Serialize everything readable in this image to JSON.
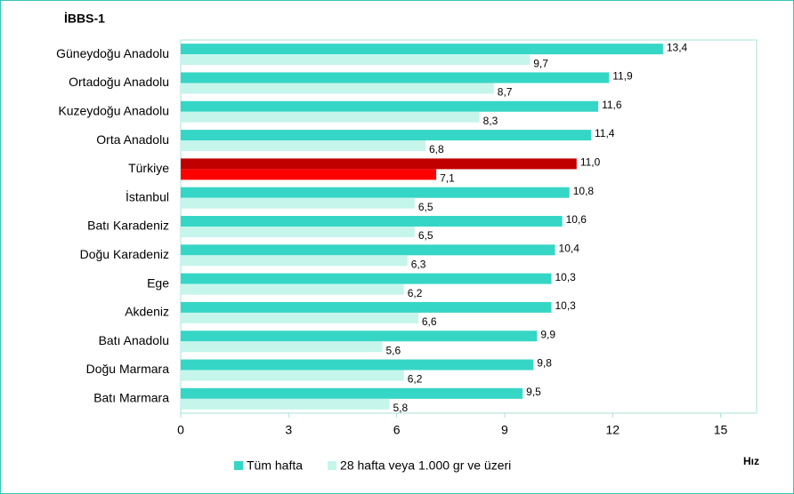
{
  "chart_data": {
    "type": "bar",
    "orientation": "horizontal",
    "title": "İBBS-1",
    "x_label": "Hız",
    "categories": [
      "Güneydoğu Anadolu",
      "Ortadoğu Anadolu",
      "Kuzeydoğu Anadolu",
      "Orta Anadolu",
      "Türkiye",
      "İstanbul",
      "Batı Karadeniz",
      "Doğu Karadeniz",
      "Ege",
      "Akdeniz",
      "Batı Anadolu",
      "Doğu Marmara",
      "Batı Marmara"
    ],
    "series": [
      {
        "name": "Tüm hafta",
        "color": "#36d6c6",
        "colors": [
          "#36d6c6",
          "#36d6c6",
          "#36d6c6",
          "#36d6c6",
          "#c00000",
          "#36d6c6",
          "#36d6c6",
          "#36d6c6",
          "#36d6c6",
          "#36d6c6",
          "#36d6c6",
          "#36d6c6",
          "#36d6c6"
        ],
        "values": [
          13.4,
          11.9,
          11.6,
          11.4,
          11.0,
          10.8,
          10.6,
          10.4,
          10.3,
          10.3,
          9.9,
          9.8,
          9.5
        ],
        "value_labels": [
          "13,4",
          "11,9",
          "11,6",
          "11,4",
          "11,0",
          "10,8",
          "10,6",
          "10,4",
          "10,3",
          "10,3",
          "9,9",
          "9,8",
          "9,5"
        ]
      },
      {
        "name": "28 hafta veya 1.000 gr ve üzeri",
        "color": "#c6f5ec",
        "colors": [
          "#c6f5ec",
          "#c6f5ec",
          "#c6f5ec",
          "#c6f5ec",
          "#ff0000",
          "#c6f5ec",
          "#c6f5ec",
          "#c6f5ec",
          "#c6f5ec",
          "#c6f5ec",
          "#c6f5ec",
          "#c6f5ec",
          "#c6f5ec"
        ],
        "values": [
          9.7,
          8.7,
          8.3,
          6.8,
          7.1,
          6.5,
          6.5,
          6.3,
          6.2,
          6.6,
          5.6,
          6.2,
          5.8
        ],
        "value_labels": [
          "9,7",
          "8,7",
          "8,3",
          "6,8",
          "7,1",
          "6,5",
          "6,5",
          "6,3",
          "6,2",
          "6,6",
          "5,6",
          "6,2",
          "5,8"
        ]
      }
    ],
    "xlim": [
      0,
      16
    ],
    "xticks": [
      0,
      3,
      6,
      9,
      12,
      15
    ],
    "legend": "bottom"
  }
}
